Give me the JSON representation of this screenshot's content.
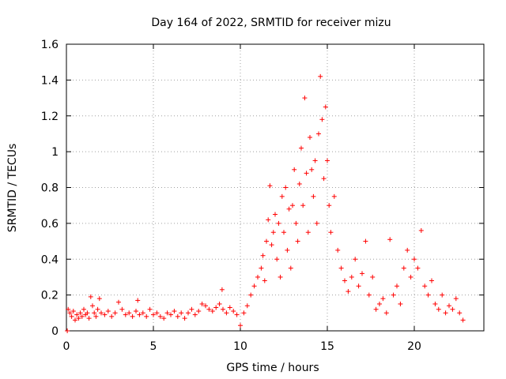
{
  "chart_data": {
    "type": "scatter",
    "title": "Day 164 of 2022, SRMTID for receiver mizu",
    "xlabel": "GPS time / hours",
    "ylabel": "SRMTID / TECUs",
    "xlim": [
      0,
      24
    ],
    "ylim": [
      0,
      1.6
    ],
    "xticks": [
      0,
      5,
      10,
      15,
      20
    ],
    "xtick_labels": [
      "0",
      "5",
      "10",
      "15",
      "20"
    ],
    "yticks": [
      0,
      0.2,
      0.4,
      0.6,
      0.8,
      1.0,
      1.2,
      1.4,
      1.6
    ],
    "ytick_labels": [
      "0",
      "0.2",
      "0.4",
      "0.6",
      "0.8",
      "1",
      "1.2",
      "1.4",
      "1.6"
    ],
    "grid": true,
    "marker": "+",
    "color": "#ff0000",
    "series": [
      {
        "name": "SRMTID",
        "points": [
          [
            0.05,
            0.0
          ],
          [
            0.1,
            0.12
          ],
          [
            0.2,
            0.1
          ],
          [
            0.3,
            0.08
          ],
          [
            0.4,
            0.11
          ],
          [
            0.5,
            0.06
          ],
          [
            0.6,
            0.09
          ],
          [
            0.7,
            0.07
          ],
          [
            0.8,
            0.1
          ],
          [
            0.9,
            0.08
          ],
          [
            1.0,
            0.12
          ],
          [
            1.1,
            0.09
          ],
          [
            1.2,
            0.1
          ],
          [
            1.3,
            0.07
          ],
          [
            1.4,
            0.19
          ],
          [
            1.5,
            0.14
          ],
          [
            1.6,
            0.1
          ],
          [
            1.7,
            0.08
          ],
          [
            1.8,
            0.12
          ],
          [
            1.9,
            0.18
          ],
          [
            2.0,
            0.1
          ],
          [
            2.2,
            0.09
          ],
          [
            2.4,
            0.11
          ],
          [
            2.6,
            0.08
          ],
          [
            2.8,
            0.1
          ],
          [
            3.0,
            0.16
          ],
          [
            3.2,
            0.12
          ],
          [
            3.4,
            0.09
          ],
          [
            3.6,
            0.1
          ],
          [
            3.8,
            0.08
          ],
          [
            4.0,
            0.11
          ],
          [
            4.1,
            0.17
          ],
          [
            4.2,
            0.09
          ],
          [
            4.4,
            0.1
          ],
          [
            4.6,
            0.08
          ],
          [
            4.8,
            0.12
          ],
          [
            5.0,
            0.09
          ],
          [
            5.2,
            0.1
          ],
          [
            5.4,
            0.08
          ],
          [
            5.6,
            0.07
          ],
          [
            5.8,
            0.1
          ],
          [
            6.0,
            0.09
          ],
          [
            6.2,
            0.11
          ],
          [
            6.4,
            0.08
          ],
          [
            6.6,
            0.1
          ],
          [
            6.8,
            0.07
          ],
          [
            7.0,
            0.1
          ],
          [
            7.2,
            0.12
          ],
          [
            7.4,
            0.09
          ],
          [
            7.6,
            0.11
          ],
          [
            7.8,
            0.15
          ],
          [
            8.0,
            0.14
          ],
          [
            8.2,
            0.12
          ],
          [
            8.4,
            0.11
          ],
          [
            8.6,
            0.13
          ],
          [
            8.8,
            0.15
          ],
          [
            8.95,
            0.23
          ],
          [
            9.0,
            0.12
          ],
          [
            9.2,
            0.1
          ],
          [
            9.4,
            0.13
          ],
          [
            9.6,
            0.11
          ],
          [
            9.8,
            0.09
          ],
          [
            10.0,
            0.03
          ],
          [
            10.2,
            0.1
          ],
          [
            10.4,
            0.14
          ],
          [
            10.6,
            0.2
          ],
          [
            10.8,
            0.25
          ],
          [
            11.0,
            0.3
          ],
          [
            11.2,
            0.35
          ],
          [
            11.3,
            0.42
          ],
          [
            11.4,
            0.28
          ],
          [
            11.5,
            0.5
          ],
          [
            11.6,
            0.62
          ],
          [
            11.7,
            0.81
          ],
          [
            11.8,
            0.48
          ],
          [
            11.9,
            0.55
          ],
          [
            12.0,
            0.65
          ],
          [
            12.1,
            0.4
          ],
          [
            12.2,
            0.6
          ],
          [
            12.3,
            0.3
          ],
          [
            12.4,
            0.75
          ],
          [
            12.5,
            0.55
          ],
          [
            12.6,
            0.8
          ],
          [
            12.7,
            0.45
          ],
          [
            12.8,
            0.68
          ],
          [
            12.9,
            0.35
          ],
          [
            13.0,
            0.7
          ],
          [
            13.1,
            0.9
          ],
          [
            13.2,
            0.6
          ],
          [
            13.3,
            0.5
          ],
          [
            13.4,
            0.82
          ],
          [
            13.5,
            1.02
          ],
          [
            13.6,
            0.7
          ],
          [
            13.7,
            1.3
          ],
          [
            13.8,
            0.88
          ],
          [
            13.9,
            0.55
          ],
          [
            14.0,
            1.08
          ],
          [
            14.1,
            0.9
          ],
          [
            14.2,
            0.75
          ],
          [
            14.3,
            0.95
          ],
          [
            14.4,
            0.6
          ],
          [
            14.5,
            1.1
          ],
          [
            14.6,
            1.42
          ],
          [
            14.7,
            1.18
          ],
          [
            14.8,
            0.85
          ],
          [
            14.9,
            1.25
          ],
          [
            15.0,
            0.95
          ],
          [
            15.1,
            0.7
          ],
          [
            15.2,
            0.55
          ],
          [
            15.4,
            0.75
          ],
          [
            15.6,
            0.45
          ],
          [
            15.8,
            0.35
          ],
          [
            16.0,
            0.28
          ],
          [
            16.2,
            0.22
          ],
          [
            16.4,
            0.3
          ],
          [
            16.6,
            0.4
          ],
          [
            16.8,
            0.25
          ],
          [
            17.0,
            0.32
          ],
          [
            17.2,
            0.5
          ],
          [
            17.4,
            0.2
          ],
          [
            17.6,
            0.3
          ],
          [
            17.8,
            0.12
          ],
          [
            18.0,
            0.15
          ],
          [
            18.2,
            0.18
          ],
          [
            18.4,
            0.1
          ],
          [
            18.6,
            0.51
          ],
          [
            18.8,
            0.2
          ],
          [
            19.0,
            0.25
          ],
          [
            19.2,
            0.15
          ],
          [
            19.4,
            0.35
          ],
          [
            19.6,
            0.45
          ],
          [
            19.8,
            0.3
          ],
          [
            20.0,
            0.4
          ],
          [
            20.2,
            0.35
          ],
          [
            20.4,
            0.56
          ],
          [
            20.6,
            0.25
          ],
          [
            20.8,
            0.2
          ],
          [
            21.0,
            0.28
          ],
          [
            21.2,
            0.15
          ],
          [
            21.4,
            0.12
          ],
          [
            21.6,
            0.2
          ],
          [
            21.8,
            0.1
          ],
          [
            22.0,
            0.14
          ],
          [
            22.2,
            0.12
          ],
          [
            22.4,
            0.18
          ],
          [
            22.6,
            0.1
          ],
          [
            22.8,
            0.06
          ]
        ]
      }
    ]
  }
}
